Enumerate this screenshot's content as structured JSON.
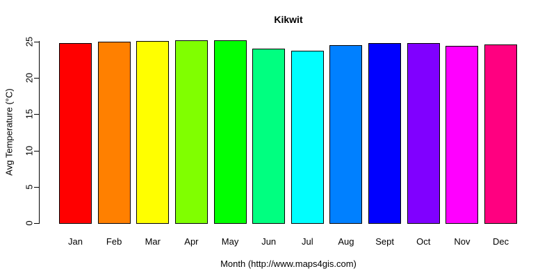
{
  "chart_data": {
    "type": "bar",
    "title": "Kikwit",
    "xlabel": "Month (http://www.maps4gis.com)",
    "ylabel": "Avg Temperature (°C)",
    "categories": [
      "Jan",
      "Feb",
      "Mar",
      "Apr",
      "May",
      "Jun",
      "Jul",
      "Aug",
      "Sept",
      "Oct",
      "Nov",
      "Dec"
    ],
    "values": [
      24.8,
      25.0,
      25.1,
      25.2,
      25.2,
      24.0,
      23.8,
      24.5,
      24.8,
      24.8,
      24.4,
      24.6
    ],
    "bar_colors": [
      "#FF0000",
      "#FF8000",
      "#FFFF00",
      "#80FF00",
      "#00FF00",
      "#00FF80",
      "#00FFFF",
      "#0080FF",
      "#0000FF",
      "#8000FF",
      "#FF00FF",
      "#FF0080"
    ],
    "bar_border_color": "#000000",
    "yticks": [
      0,
      5,
      10,
      15,
      20,
      25
    ],
    "ylim": [
      0,
      25
    ],
    "grid": false,
    "legend": "none",
    "axis_color": "#000000",
    "text_color": "#000000",
    "background": "#FFFFFF"
  }
}
